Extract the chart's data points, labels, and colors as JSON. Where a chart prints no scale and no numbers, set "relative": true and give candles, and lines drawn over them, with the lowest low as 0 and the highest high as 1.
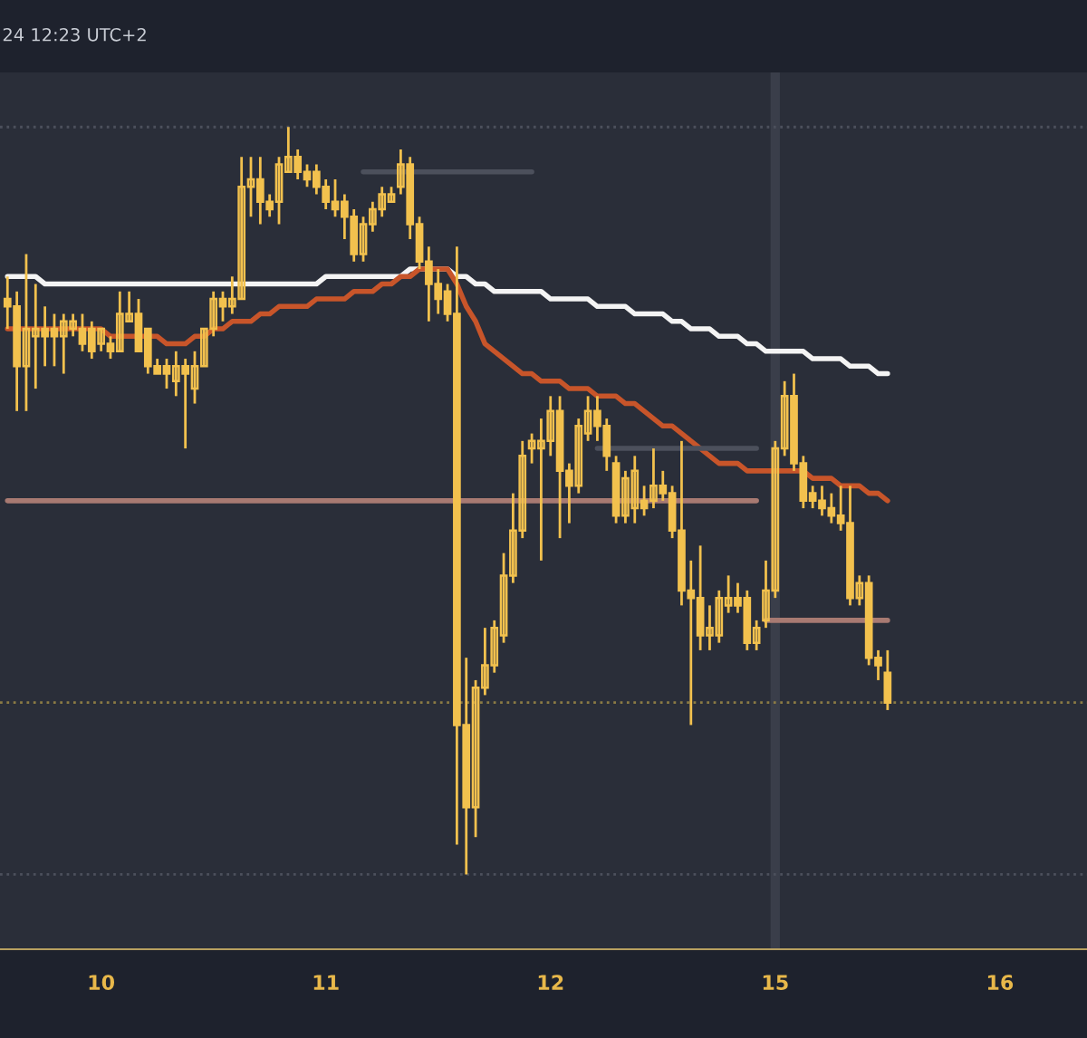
{
  "chart_data": {
    "type": "candlestick",
    "title": "24 12:23 UTC+2",
    "relative": true,
    "color": "#f2c14e",
    "categories": [
      null,
      null,
      null,
      null,
      null,
      null,
      null,
      null,
      null,
      null,
      "10",
      null,
      null,
      null,
      null,
      null,
      null,
      null,
      null,
      null,
      null,
      null,
      null,
      null,
      null,
      null,
      null,
      null,
      null,
      null,
      null,
      null,
      null,
      null,
      "11",
      null,
      null,
      null,
      null,
      null,
      null,
      null,
      null,
      null,
      null,
      null,
      null,
      null,
      null,
      null,
      null,
      null,
      null,
      null,
      null,
      null,
      null,
      null,
      "12",
      null,
      null,
      null,
      null,
      null,
      null,
      null,
      null,
      null,
      null,
      null,
      null,
      null,
      null,
      null,
      null,
      null,
      null,
      null,
      null,
      null,
      null,
      null,
      "15",
      null,
      null,
      null,
      null,
      null,
      null,
      null,
      null,
      null,
      null,
      null,
      null,
      null,
      null,
      null,
      null,
      null,
      null,
      null,
      null,
      null,
      null,
      null,
      "16"
    ],
    "ohlc": [
      [
        0.77,
        0.8,
        0.73,
        0.76
      ],
      [
        0.76,
        0.78,
        0.62,
        0.68
      ],
      [
        0.68,
        0.83,
        0.62,
        0.73
      ],
      [
        0.72,
        0.79,
        0.65,
        0.73
      ],
      [
        0.73,
        0.76,
        0.68,
        0.72
      ],
      [
        0.73,
        0.75,
        0.68,
        0.72
      ],
      [
        0.72,
        0.75,
        0.67,
        0.74
      ],
      [
        0.73,
        0.75,
        0.72,
        0.74
      ],
      [
        0.73,
        0.75,
        0.7,
        0.71
      ],
      [
        0.73,
        0.74,
        0.69,
        0.7
      ],
      [
        0.71,
        0.73,
        0.7,
        0.73
      ],
      [
        0.71,
        0.72,
        0.69,
        0.7
      ],
      [
        0.7,
        0.78,
        0.7,
        0.75
      ],
      [
        0.74,
        0.78,
        0.74,
        0.75
      ],
      [
        0.75,
        0.77,
        0.7,
        0.7
      ],
      [
        0.73,
        0.73,
        0.67,
        0.68
      ],
      [
        0.68,
        0.69,
        0.67,
        0.67
      ],
      [
        0.68,
        0.69,
        0.65,
        0.67
      ],
      [
        0.66,
        0.7,
        0.64,
        0.68
      ],
      [
        0.68,
        0.69,
        0.57,
        0.67
      ],
      [
        0.65,
        0.7,
        0.63,
        0.68
      ],
      [
        0.68,
        0.73,
        0.68,
        0.73
      ],
      [
        0.73,
        0.78,
        0.72,
        0.77
      ],
      [
        0.77,
        0.78,
        0.74,
        0.76
      ],
      [
        0.76,
        0.8,
        0.75,
        0.77
      ],
      [
        0.77,
        0.96,
        0.77,
        0.92
      ],
      [
        0.92,
        0.96,
        0.88,
        0.93
      ],
      [
        0.93,
        0.96,
        0.87,
        0.9
      ],
      [
        0.9,
        0.91,
        0.88,
        0.89
      ],
      [
        0.9,
        0.96,
        0.87,
        0.95
      ],
      [
        0.94,
        1,
        0.94,
        0.96
      ],
      [
        0.96,
        0.97,
        0.93,
        0.94
      ],
      [
        0.94,
        0.95,
        0.92,
        0.93
      ],
      [
        0.94,
        0.95,
        0.91,
        0.92
      ],
      [
        0.92,
        0.93,
        0.89,
        0.9
      ],
      [
        0.9,
        0.93,
        0.88,
        0.89
      ],
      [
        0.9,
        0.91,
        0.85,
        0.88
      ],
      [
        0.88,
        0.89,
        0.82,
        0.83
      ],
      [
        0.83,
        0.88,
        0.82,
        0.87
      ],
      [
        0.87,
        0.9,
        0.86,
        0.89
      ],
      [
        0.89,
        0.92,
        0.88,
        0.91
      ],
      [
        0.9,
        0.92,
        0.9,
        0.91
      ],
      [
        0.92,
        0.97,
        0.91,
        0.95
      ],
      [
        0.95,
        0.96,
        0.85,
        0.87
      ],
      [
        0.87,
        0.88,
        0.81,
        0.82
      ],
      [
        0.82,
        0.84,
        0.74,
        0.79
      ],
      [
        0.79,
        0.81,
        0.75,
        0.77
      ],
      [
        0.78,
        0.79,
        0.74,
        0.75
      ],
      [
        0.75,
        0.84,
        0.04,
        0.2
      ],
      [
        0.2,
        0.29,
        0,
        0.09
      ],
      [
        0.09,
        0.26,
        0.05,
        0.25
      ],
      [
        0.25,
        0.33,
        0.24,
        0.28
      ],
      [
        0.28,
        0.34,
        0.27,
        0.33
      ],
      [
        0.32,
        0.43,
        0.31,
        0.4
      ],
      [
        0.4,
        0.51,
        0.39,
        0.46
      ],
      [
        0.46,
        0.58,
        0.45,
        0.56
      ],
      [
        0.57,
        0.59,
        0.55,
        0.58
      ],
      [
        0.57,
        0.61,
        0.42,
        0.58
      ],
      [
        0.58,
        0.64,
        0.56,
        0.62
      ],
      [
        0.62,
        0.64,
        0.45,
        0.54
      ],
      [
        0.54,
        0.55,
        0.47,
        0.52
      ],
      [
        0.52,
        0.61,
        0.51,
        0.6
      ],
      [
        0.59,
        0.64,
        0.58,
        0.62
      ],
      [
        0.62,
        0.64,
        0.58,
        0.6
      ],
      [
        0.6,
        0.61,
        0.54,
        0.56
      ],
      [
        0.55,
        0.56,
        0.47,
        0.48
      ],
      [
        0.48,
        0.54,
        0.47,
        0.53
      ],
      [
        0.49,
        0.56,
        0.47,
        0.54
      ],
      [
        0.5,
        0.52,
        0.48,
        0.49
      ],
      [
        0.5,
        0.57,
        0.49,
        0.52
      ],
      [
        0.52,
        0.54,
        0.5,
        0.51
      ],
      [
        0.51,
        0.52,
        0.45,
        0.46
      ],
      [
        0.46,
        0.58,
        0.36,
        0.38
      ],
      [
        0.38,
        0.42,
        0.2,
        0.37
      ],
      [
        0.37,
        0.44,
        0.3,
        0.32
      ],
      [
        0.32,
        0.36,
        0.3,
        0.33
      ],
      [
        0.32,
        0.38,
        0.31,
        0.37
      ],
      [
        0.36,
        0.4,
        0.35,
        0.37
      ],
      [
        0.37,
        0.39,
        0.35,
        0.36
      ],
      [
        0.37,
        0.38,
        0.3,
        0.31
      ],
      [
        0.31,
        0.34,
        0.3,
        0.33
      ],
      [
        0.34,
        0.42,
        0.33,
        0.38
      ],
      [
        0.38,
        0.58,
        0.37,
        0.57
      ],
      [
        0.57,
        0.66,
        0.56,
        0.64
      ],
      [
        0.64,
        0.67,
        0.54,
        0.55
      ],
      [
        0.55,
        0.56,
        0.49,
        0.5
      ],
      [
        0.51,
        0.52,
        0.49,
        0.5
      ],
      [
        0.5,
        0.52,
        0.48,
        0.49
      ],
      [
        0.49,
        0.51,
        0.47,
        0.48
      ],
      [
        0.48,
        0.52,
        0.46,
        0.47
      ],
      [
        0.47,
        0.52,
        0.36,
        0.37
      ],
      [
        0.37,
        0.4,
        0.36,
        0.39
      ],
      [
        0.39,
        0.4,
        0.28,
        0.29
      ],
      [
        0.29,
        0.3,
        0.26,
        0.28
      ],
      [
        0.27,
        0.3,
        0.22,
        0.23
      ],
      null,
      null,
      null,
      null,
      null,
      null,
      null,
      null,
      null,
      null,
      null,
      null
    ],
    "series": [
      {
        "type": "line",
        "color": "#f4f4f4",
        "values": [
          0.8,
          0.8,
          0.8,
          0.8,
          0.79,
          0.79,
          0.79,
          0.79,
          0.79,
          0.79,
          0.79,
          0.79,
          0.79,
          0.79,
          0.79,
          0.79,
          0.79,
          0.79,
          0.79,
          0.79,
          0.79,
          0.79,
          0.79,
          0.79,
          0.79,
          0.79,
          0.79,
          0.79,
          0.79,
          0.79,
          0.79,
          0.79,
          0.79,
          0.79,
          0.8,
          0.8,
          0.8,
          0.8,
          0.8,
          0.8,
          0.8,
          0.8,
          0.8,
          0.81,
          0.81,
          0.81,
          0.81,
          0.81,
          0.8,
          0.8,
          0.79,
          0.79,
          0.78,
          0.78,
          0.78,
          0.78,
          0.78,
          0.78,
          0.77,
          0.77,
          0.77,
          0.77,
          0.77,
          0.76,
          0.76,
          0.76,
          0.76,
          0.75,
          0.75,
          0.75,
          0.75,
          0.74,
          0.74,
          0.73,
          0.73,
          0.73,
          0.72,
          0.72,
          0.72,
          0.71,
          0.71,
          0.7,
          0.7,
          0.7,
          0.7,
          0.7,
          0.69,
          0.69,
          0.69,
          0.69,
          0.68,
          0.68,
          0.68,
          0.67,
          0.67,
          null,
          null,
          null,
          null,
          null,
          null,
          null,
          null,
          null,
          null,
          null,
          null
        ]
      },
      {
        "type": "line",
        "color": "#c8552a",
        "values": [
          0.73,
          0.73,
          0.73,
          0.73,
          0.73,
          0.73,
          0.73,
          0.73,
          0.73,
          0.73,
          0.73,
          0.72,
          0.72,
          0.72,
          0.72,
          0.72,
          0.72,
          0.71,
          0.71,
          0.71,
          0.72,
          0.72,
          0.73,
          0.73,
          0.74,
          0.74,
          0.74,
          0.75,
          0.75,
          0.76,
          0.76,
          0.76,
          0.76,
          0.77,
          0.77,
          0.77,
          0.77,
          0.78,
          0.78,
          0.78,
          0.79,
          0.79,
          0.8,
          0.8,
          0.81,
          0.81,
          0.81,
          0.81,
          0.79,
          0.76,
          0.74,
          0.71,
          0.7,
          0.69,
          0.68,
          0.67,
          0.67,
          0.66,
          0.66,
          0.66,
          0.65,
          0.65,
          0.65,
          0.64,
          0.64,
          0.64,
          0.63,
          0.63,
          0.62,
          0.61,
          0.6,
          0.6,
          0.59,
          0.58,
          0.57,
          0.56,
          0.55,
          0.55,
          0.55,
          0.54,
          0.54,
          0.54,
          0.54,
          0.54,
          0.54,
          0.54,
          0.53,
          0.53,
          0.53,
          0.52,
          0.52,
          0.52,
          0.51,
          0.51,
          0.5,
          null,
          null,
          null,
          null,
          null,
          null,
          null,
          null,
          null,
          null,
          null,
          null
        ]
      },
      {
        "type": "line",
        "color": "#a87a72",
        "values": [
          0.5,
          0.5,
          0.5,
          0.5,
          0.5,
          0.5,
          0.5,
          0.5,
          0.5,
          0.5,
          0.5,
          0.5,
          0.5,
          0.5,
          0.5,
          0.5,
          0.5,
          0.5,
          0.5,
          0.5,
          0.5,
          0.5,
          0.5,
          0.5,
          0.5,
          0.5,
          0.5,
          0.5,
          0.5,
          0.5,
          0.5,
          0.5,
          0.5,
          0.5,
          0.5,
          0.5,
          0.5,
          0.5,
          0.5,
          0.5,
          0.5,
          0.5,
          0.5,
          0.5,
          0.5,
          0.5,
          0.5,
          0.5,
          0.5,
          0.5,
          0.5,
          0.5,
          0.5,
          0.5,
          0.5,
          0.5,
          0.5,
          0.5,
          0.5,
          0.5,
          0.5,
          0.5,
          0.5,
          0.5,
          0.5,
          0.5,
          0.5,
          0.5,
          0.5,
          0.5,
          0.5,
          0.5,
          0.5,
          0.5,
          0.5,
          0.5,
          0.5,
          0.5,
          0.5,
          0.5,
          0.5,
          null,
          null,
          null,
          null,
          null,
          null,
          null,
          null,
          null,
          null,
          null,
          null,
          null,
          null,
          null,
          null,
          null,
          null,
          null,
          null,
          null,
          null,
          null,
          null,
          null,
          null
        ]
      },
      {
        "type": "line",
        "color": "#a87a72",
        "values": [
          null,
          null,
          null,
          null,
          null,
          null,
          null,
          null,
          null,
          null,
          null,
          null,
          null,
          null,
          null,
          null,
          null,
          null,
          null,
          null,
          null,
          null,
          null,
          null,
          null,
          null,
          null,
          null,
          null,
          null,
          null,
          null,
          null,
          null,
          null,
          null,
          null,
          null,
          null,
          null,
          null,
          null,
          null,
          null,
          null,
          null,
          null,
          null,
          null,
          null,
          null,
          null,
          null,
          null,
          null,
          null,
          null,
          null,
          null,
          null,
          null,
          null,
          null,
          null,
          null,
          null,
          null,
          null,
          null,
          null,
          null,
          null,
          null,
          null,
          null,
          null,
          null,
          null,
          null,
          null,
          null,
          0.34,
          0.34,
          0.34,
          0.34,
          0.34,
          0.34,
          0.34,
          0.34,
          0.34,
          0.34,
          0.34,
          0.34,
          0.34,
          0.34,
          null,
          null,
          null,
          null,
          null,
          null,
          null,
          null,
          null,
          null,
          null,
          null
        ]
      },
      {
        "type": "line",
        "color": "#4c505c",
        "values": [
          null,
          null,
          null,
          null,
          null,
          null,
          null,
          null,
          null,
          null,
          null,
          null,
          null,
          null,
          null,
          null,
          null,
          null,
          null,
          null,
          null,
          null,
          null,
          null,
          null,
          null,
          null,
          null,
          null,
          null,
          null,
          null,
          null,
          null,
          null,
          null,
          null,
          null,
          0.94,
          0.94,
          0.94,
          0.94,
          0.94,
          0.94,
          0.94,
          0.94,
          0.94,
          0.94,
          0.94,
          0.94,
          0.94,
          0.94,
          0.94,
          0.94,
          0.94,
          0.94,
          0.94,
          null,
          null,
          null,
          null,
          null,
          null,
          null,
          null,
          null,
          null,
          null,
          null,
          null,
          null,
          null,
          null,
          null,
          null,
          null,
          null,
          null,
          null,
          null,
          null,
          null,
          null,
          null,
          null,
          null,
          null,
          null,
          null,
          null,
          null,
          null,
          null,
          null,
          null,
          null,
          null,
          null,
          null,
          null,
          null,
          null,
          null,
          null,
          null,
          null,
          null
        ]
      },
      {
        "type": "line",
        "color": "#4c505c",
        "values": [
          null,
          null,
          null,
          null,
          null,
          null,
          null,
          null,
          null,
          null,
          null,
          null,
          null,
          null,
          null,
          null,
          null,
          null,
          null,
          null,
          null,
          null,
          null,
          null,
          null,
          null,
          null,
          null,
          null,
          null,
          null,
          null,
          null,
          null,
          null,
          null,
          null,
          null,
          null,
          null,
          null,
          null,
          null,
          null,
          null,
          null,
          null,
          null,
          null,
          null,
          null,
          null,
          null,
          null,
          null,
          null,
          null,
          null,
          null,
          null,
          null,
          null,
          null,
          0.57,
          0.57,
          0.57,
          0.57,
          0.57,
          0.57,
          0.57,
          0.57,
          0.57,
          0.57,
          0.57,
          0.57,
          0.57,
          0.57,
          0.57,
          0.57,
          0.57,
          0.57,
          null,
          null,
          null,
          null,
          null,
          null,
          null,
          null,
          null,
          null,
          null,
          null,
          null,
          null,
          null,
          null,
          null,
          null,
          null,
          null,
          null,
          null,
          null,
          null,
          null,
          null
        ]
      }
    ],
    "ref_lines": [
      {
        "axis": "y",
        "value": 1,
        "color": "#4c505c",
        "line_style": "dotted"
      },
      {
        "axis": "y",
        "value": 0.23,
        "color": "#8a7a44",
        "line_style": "dotted"
      },
      {
        "axis": "y",
        "value": 0,
        "color": "#4c505c",
        "line_style": "dotted"
      }
    ],
    "bands": [
      {
        "axis": "x",
        "from": "15",
        "to": "15",
        "color": "#3a3e4a"
      }
    ],
    "tick_labels": "x",
    "grid": false,
    "legend": false
  }
}
